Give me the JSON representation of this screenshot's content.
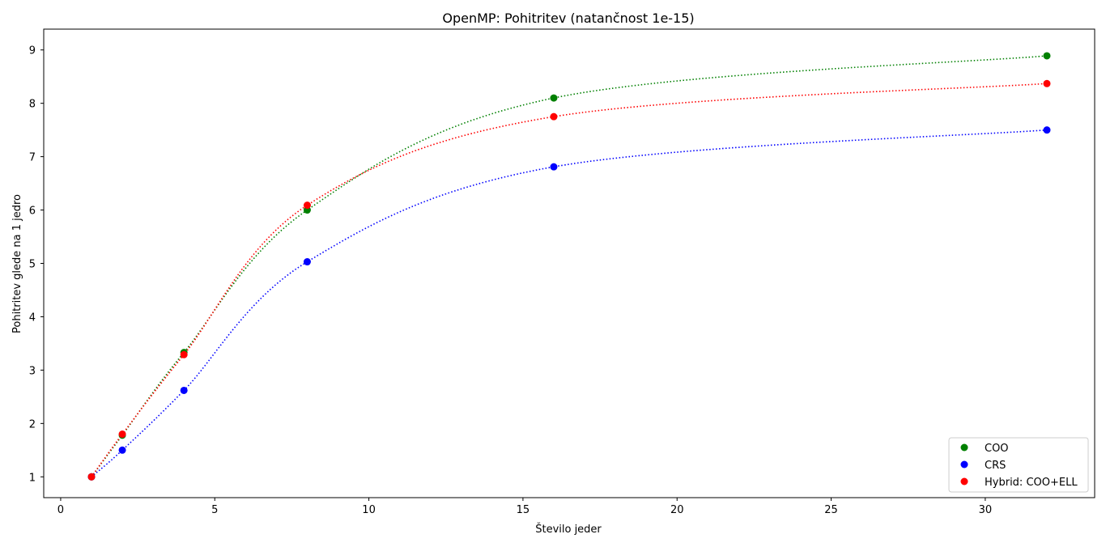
{
  "chart_data": {
    "type": "scatter",
    "title": "OpenMP: Pohitritev (natančnost 1e-15)",
    "xlabel": "Število jeder",
    "ylabel": "Pohitritev glede na 1 jedro",
    "xlim": [
      -0.55,
      33.55
    ],
    "ylim": [
      0.61,
      9.39
    ],
    "xticks": [
      0,
      5,
      10,
      15,
      20,
      25,
      30
    ],
    "yticks": [
      1,
      2,
      3,
      4,
      5,
      6,
      7,
      8,
      9
    ],
    "grid": false,
    "legend_position": "lower-right",
    "x": [
      1,
      2,
      4,
      8,
      16,
      32
    ],
    "series": [
      {
        "name": "COO",
        "color": "#008000",
        "values": [
          1.0,
          1.78,
          3.33,
          6.0,
          8.1,
          8.89
        ]
      },
      {
        "name": "CRS",
        "color": "#0000ff",
        "values": [
          1.0,
          1.5,
          2.62,
          5.03,
          6.81,
          7.5
        ]
      },
      {
        "name": "Hybrid: COO+ELL",
        "color": "#ff0000",
        "values": [
          1.0,
          1.8,
          3.29,
          6.09,
          7.75,
          8.37
        ]
      }
    ],
    "trend_lines": "dotted smooth fit per series"
  }
}
